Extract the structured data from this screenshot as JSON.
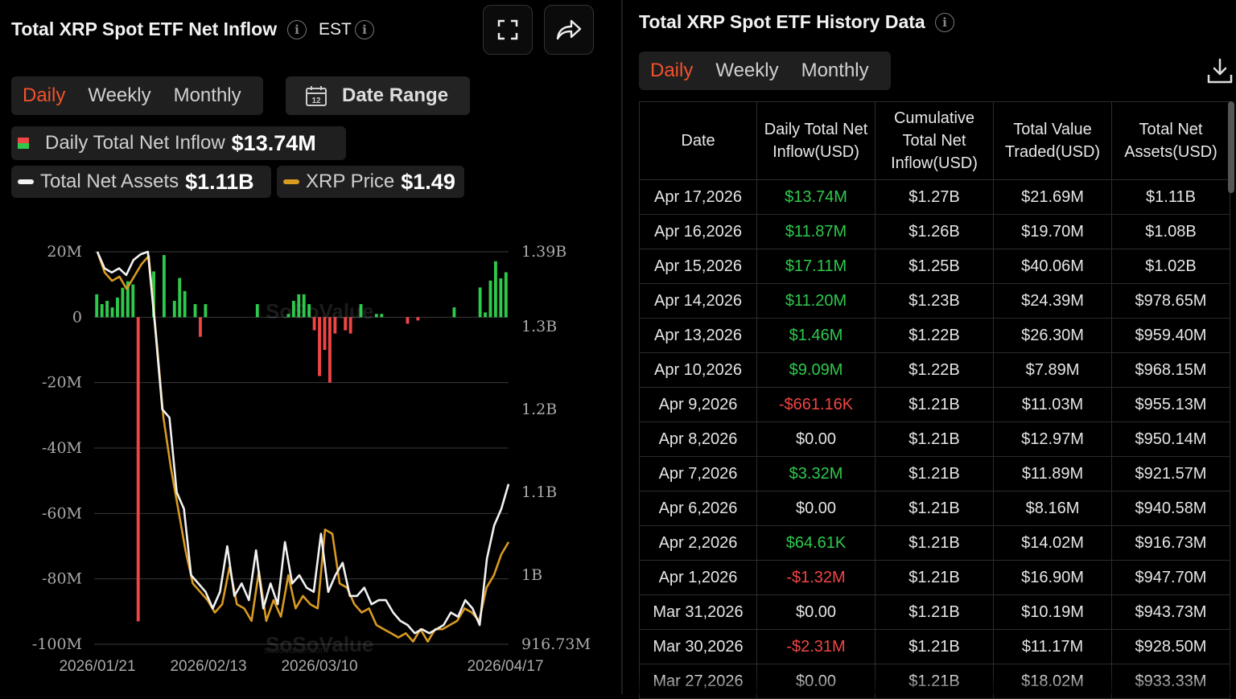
{
  "left": {
    "title": "Total XRP Spot ETF Net Inflow",
    "timezone": "EST",
    "tabs": [
      "Daily",
      "Weekly",
      "Monthly"
    ],
    "active_tab": "Daily",
    "date_range_label": "Date Range",
    "calendar_day": "12",
    "legend": {
      "inflow_label": "Daily Total Net Inflow",
      "inflow_value": "$13.74M",
      "assets_label": "Total Net Assets",
      "assets_value": "$1.11B",
      "price_label": "XRP Price",
      "price_value": "$1.49"
    },
    "watermark": "SoSoValue",
    "watermark_sub": "sosovalue.com"
  },
  "right": {
    "title": "Total XRP Spot ETF History Data",
    "tabs": [
      "Daily",
      "Weekly",
      "Monthly"
    ],
    "active_tab": "Daily",
    "columns": [
      "Date",
      "Daily Total Net Inflow(USD)",
      "Cumulative Total Net Inflow(USD)",
      "Total Value Traded(USD)",
      "Total Net Assets(USD)"
    ],
    "rows": [
      {
        "date": "Apr 17,2026",
        "inflow": "$13.74M",
        "sign": "pos",
        "cum": "$1.27B",
        "traded": "$21.69M",
        "assets": "$1.11B"
      },
      {
        "date": "Apr 16,2026",
        "inflow": "$11.87M",
        "sign": "pos",
        "cum": "$1.26B",
        "traded": "$19.70M",
        "assets": "$1.08B"
      },
      {
        "date": "Apr 15,2026",
        "inflow": "$17.11M",
        "sign": "pos",
        "cum": "$1.25B",
        "traded": "$40.06M",
        "assets": "$1.02B"
      },
      {
        "date": "Apr 14,2026",
        "inflow": "$11.20M",
        "sign": "pos",
        "cum": "$1.23B",
        "traded": "$24.39M",
        "assets": "$978.65M"
      },
      {
        "date": "Apr 13,2026",
        "inflow": "$1.46M",
        "sign": "pos",
        "cum": "$1.22B",
        "traded": "$26.30M",
        "assets": "$959.40M"
      },
      {
        "date": "Apr 10,2026",
        "inflow": "$9.09M",
        "sign": "pos",
        "cum": "$1.22B",
        "traded": "$7.89M",
        "assets": "$968.15M"
      },
      {
        "date": "Apr 9,2026",
        "inflow": "-$661.16K",
        "sign": "neg",
        "cum": "$1.21B",
        "traded": "$11.03M",
        "assets": "$955.13M"
      },
      {
        "date": "Apr 8,2026",
        "inflow": "$0.00",
        "sign": "zero",
        "cum": "$1.21B",
        "traded": "$12.97M",
        "assets": "$950.14M"
      },
      {
        "date": "Apr 7,2026",
        "inflow": "$3.32M",
        "sign": "pos",
        "cum": "$1.21B",
        "traded": "$11.89M",
        "assets": "$921.57M"
      },
      {
        "date": "Apr 6,2026",
        "inflow": "$0.00",
        "sign": "zero",
        "cum": "$1.21B",
        "traded": "$8.16M",
        "assets": "$940.58M"
      },
      {
        "date": "Apr 2,2026",
        "inflow": "$64.61K",
        "sign": "pos",
        "cum": "$1.21B",
        "traded": "$14.02M",
        "assets": "$916.73M"
      },
      {
        "date": "Apr 1,2026",
        "inflow": "-$1.32M",
        "sign": "neg",
        "cum": "$1.21B",
        "traded": "$16.90M",
        "assets": "$947.70M"
      },
      {
        "date": "Mar 31,2026",
        "inflow": "$0.00",
        "sign": "zero",
        "cum": "$1.21B",
        "traded": "$10.19M",
        "assets": "$943.73M"
      },
      {
        "date": "Mar 30,2026",
        "inflow": "-$2.31M",
        "sign": "neg",
        "cum": "$1.21B",
        "traded": "$11.17M",
        "assets": "$928.50M"
      },
      {
        "date": "Mar 27,2026",
        "inflow": "$0.00",
        "sign": "zero",
        "cum": "$1.21B",
        "traded": "$18.02M",
        "assets": "$933.33M"
      }
    ]
  },
  "colors": {
    "accent": "#f0522c",
    "positive": "#2ec94d",
    "negative": "#f04545",
    "assets_line": "#f2f2f2",
    "price_line": "#d99a22"
  },
  "icons": [
    "info-icon",
    "fullscreen-icon",
    "share-icon",
    "calendar-icon",
    "download-icon"
  ],
  "chart_data": {
    "type": "bar",
    "title": "Total XRP Spot ETF Net Inflow",
    "left_axis": {
      "ticks": [
        "20M",
        "0",
        "-20M",
        "-40M",
        "-60M",
        "-80M",
        "-100M"
      ],
      "range": [
        -100,
        20
      ],
      "unit": "M USD"
    },
    "right_axis": {
      "ticks": [
        "1.39B",
        "1.3B",
        "1.2B",
        "1.1B",
        "1B",
        "916.73M"
      ],
      "range": [
        916.73,
        1390
      ],
      "unit": "M USD"
    },
    "x_ticks": [
      "2026/01/21",
      "2026/02/13",
      "2026/03/10",
      "2026/04/17"
    ],
    "x_days": 63,
    "tick_days": [
      0,
      23,
      48,
      86
    ],
    "grid": true,
    "inflow_series": {
      "name": "Daily Total Net Inflow",
      "values": [
        7,
        4,
        5,
        3,
        6,
        9,
        11,
        10,
        -93,
        0,
        0,
        14,
        0,
        19,
        0,
        5,
        12,
        8,
        0,
        4,
        -6,
        4,
        0,
        0,
        0,
        0,
        0,
        0,
        0,
        0,
        0,
        4,
        0,
        0,
        0,
        0,
        0,
        1,
        5,
        7,
        7,
        4,
        -4,
        -18,
        -10,
        -20,
        -5,
        0,
        -4,
        -5,
        0,
        4,
        0,
        0,
        1,
        1,
        0,
        0,
        0,
        0,
        -2,
        0,
        -1,
        0,
        0,
        0,
        0,
        0,
        0,
        3,
        0,
        0,
        0,
        0,
        9.09,
        1.46,
        11.2,
        17.11,
        11.87,
        13.74
      ]
    },
    "assets_series": {
      "name": "Total Net Assets",
      "values": [
        1390,
        1370,
        1365,
        1370,
        1362,
        1380,
        1387,
        1390,
        1300,
        1200,
        1190,
        1100,
        1080,
        1000,
        990,
        980,
        960,
        980,
        1035,
        975,
        990,
        970,
        1030,
        960,
        990,
        965,
        1040,
        990,
        1000,
        985,
        980,
        1050,
        980,
        1000,
        1015,
        975,
        975,
        985,
        965,
        970,
        970,
        955,
        945,
        940,
        930,
        935,
        930,
        935,
        940,
        955,
        950,
        970,
        960,
        940,
        1020,
        1060,
        1080,
        1110
      ]
    },
    "price_series": {
      "name": "XRP Price",
      "values": [
        1390,
        1365,
        1355,
        1360,
        1345,
        1360,
        1375,
        1385,
        1290,
        1190,
        1130,
        1080,
        1030,
        990,
        980,
        970,
        955,
        965,
        1010,
        965,
        960,
        945,
        1005,
        945,
        970,
        950,
        1000,
        960,
        975,
        965,
        960,
        1055,
        1050,
        990,
        985,
        965,
        955,
        960,
        940,
        935,
        930,
        925,
        930,
        920,
        935,
        920,
        935,
        935,
        940,
        945,
        960,
        955,
        945,
        985,
        1000,
        1025,
        1040
      ]
    }
  }
}
